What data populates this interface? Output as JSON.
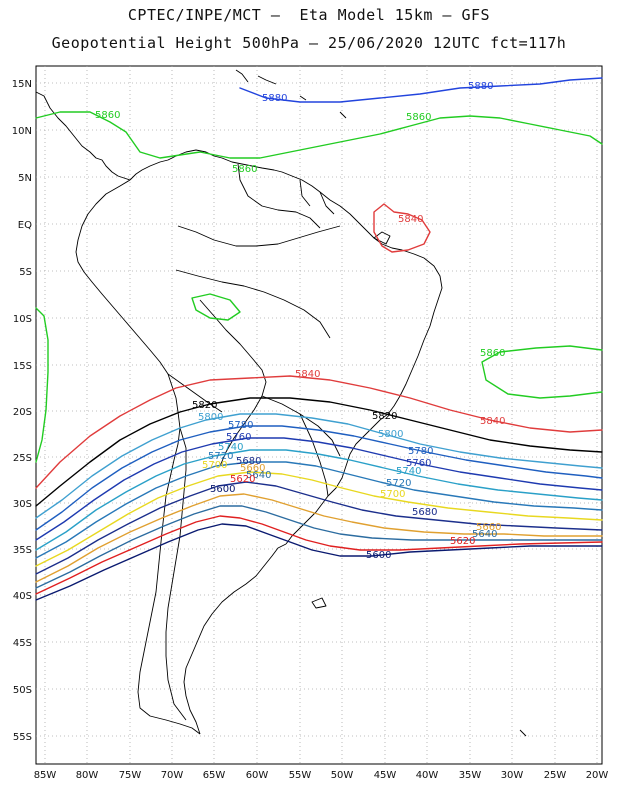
{
  "header": {
    "line1": "CPTEC/INPE/MCT –  Eta Model 15km – GFS",
    "line2": "Geopotential Height 500hPa – 25/06/2020 12UTC fct=117h"
  },
  "axes": {
    "lat_labels": [
      "15N",
      "10N",
      "5N",
      "EQ",
      "5S",
      "10S",
      "15S",
      "20S",
      "25S",
      "30S",
      "35S",
      "40S",
      "45S",
      "50S",
      "55S"
    ],
    "lon_labels": [
      "85W",
      "80W",
      "75W",
      "70W",
      "65W",
      "60W",
      "55W",
      "50W",
      "45W",
      "40W",
      "35W",
      "30W",
      "25W",
      "20W"
    ]
  },
  "colors": {
    "c5860": "#22cc22",
    "c5880": "#2244dd",
    "c5840": "#e03c3c",
    "c5820": "#000000",
    "c5800": "#3fa0d0",
    "c5780": "#1f5fc0",
    "c5760": "#1e3ab0",
    "c5740": "#2aa0c8",
    "c5720": "#2878b8",
    "c5700": "#e8d820",
    "c5680": "#1c2f8c",
    "c5660": "#e0a030",
    "c5640": "#2c6ca0",
    "c5620": "#e02020",
    "c5600": "#0a1a70",
    "border": "#000000",
    "grid": "#aaaaaa"
  },
  "contour_labels": {
    "l5880a": "5880",
    "l5880b": "5880",
    "l5860a": "5860",
    "l5860b": "5860",
    "l5860c": "5860",
    "l5860d": "5860",
    "l5840a": "5840",
    "l5840b": "5840",
    "l5840c": "5840",
    "l5820a": "5820",
    "l5820b": "5820",
    "l5800a": "5800",
    "l5800b": "5800",
    "l5780a": "5780",
    "l5780b": "5780",
    "l5760a": "5760",
    "l5760b": "5760",
    "l5740a": "5740",
    "l5740b": "5740",
    "l5720a": "5720",
    "l5720b": "5720",
    "l5700a": "5700",
    "l5700b": "5700",
    "l5680a": "5680",
    "l5680b": "5680",
    "l5660a": "5660",
    "l5660b": "5660",
    "l5640a": "5640",
    "l5640b": "5640",
    "l5620a": "5620",
    "l5620b": "5620",
    "l5600a": "5600",
    "l5600b": "5600"
  }
}
